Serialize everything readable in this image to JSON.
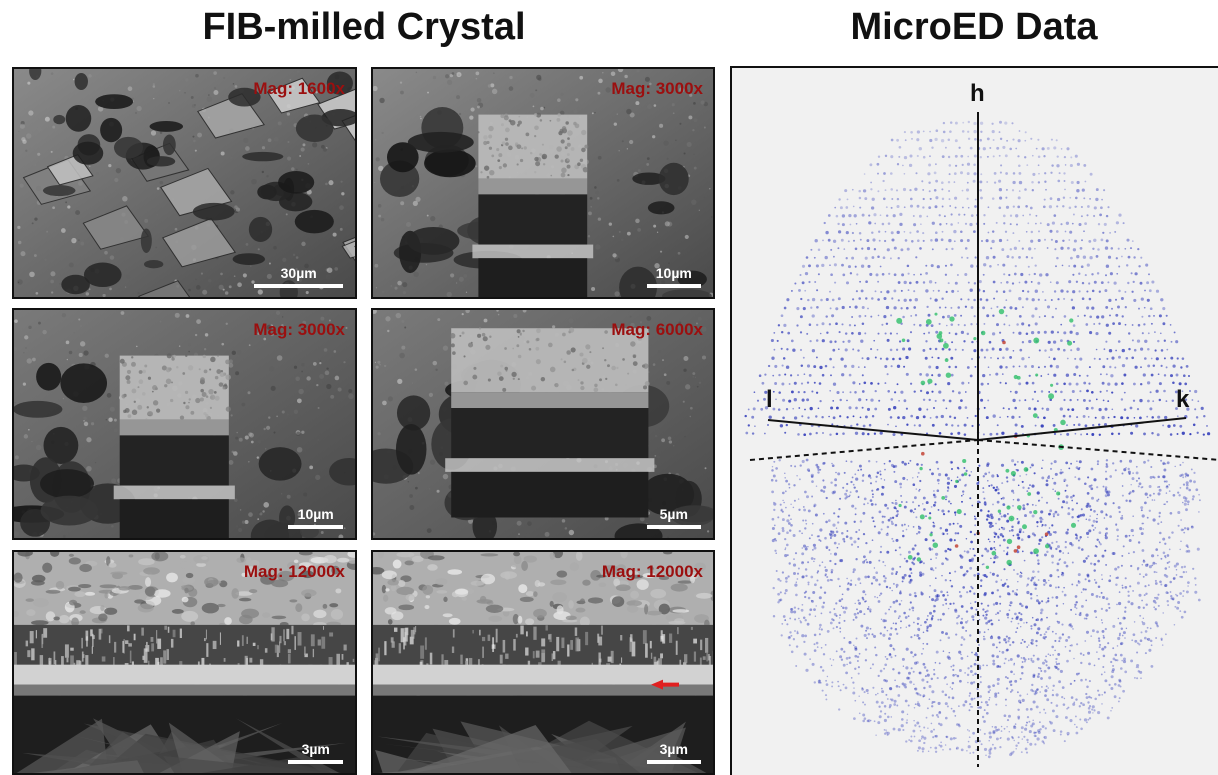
{
  "headings": {
    "left": "FIB-milled Crystal",
    "right": "MicroED Data"
  },
  "panels": [
    {
      "magnification": "Mag: 1600x",
      "scale": "30µm",
      "scale_fraction": 0.26
    },
    {
      "magnification": "Mag: 3000x",
      "scale": "10µm",
      "scale_fraction": 0.16
    },
    {
      "magnification": "Mag: 3000x",
      "scale": "10µm",
      "scale_fraction": 0.16
    },
    {
      "magnification": "Mag: 6000x",
      "scale": "5µm",
      "scale_fraction": 0.16
    },
    {
      "magnification": "Mag: 12000x",
      "scale": "3µm",
      "scale_fraction": 0.16
    },
    {
      "magnification": "Mag: 12000x",
      "scale": "3µm",
      "scale_fraction": 0.16
    }
  ],
  "microed": {
    "axes": {
      "h": "h",
      "k": "k",
      "l": "l"
    },
    "colors": {
      "spots": "#2a35b8",
      "highlight": "#2fbf6a",
      "hot": "#c0392b",
      "background": "#f1f1f1"
    }
  }
}
